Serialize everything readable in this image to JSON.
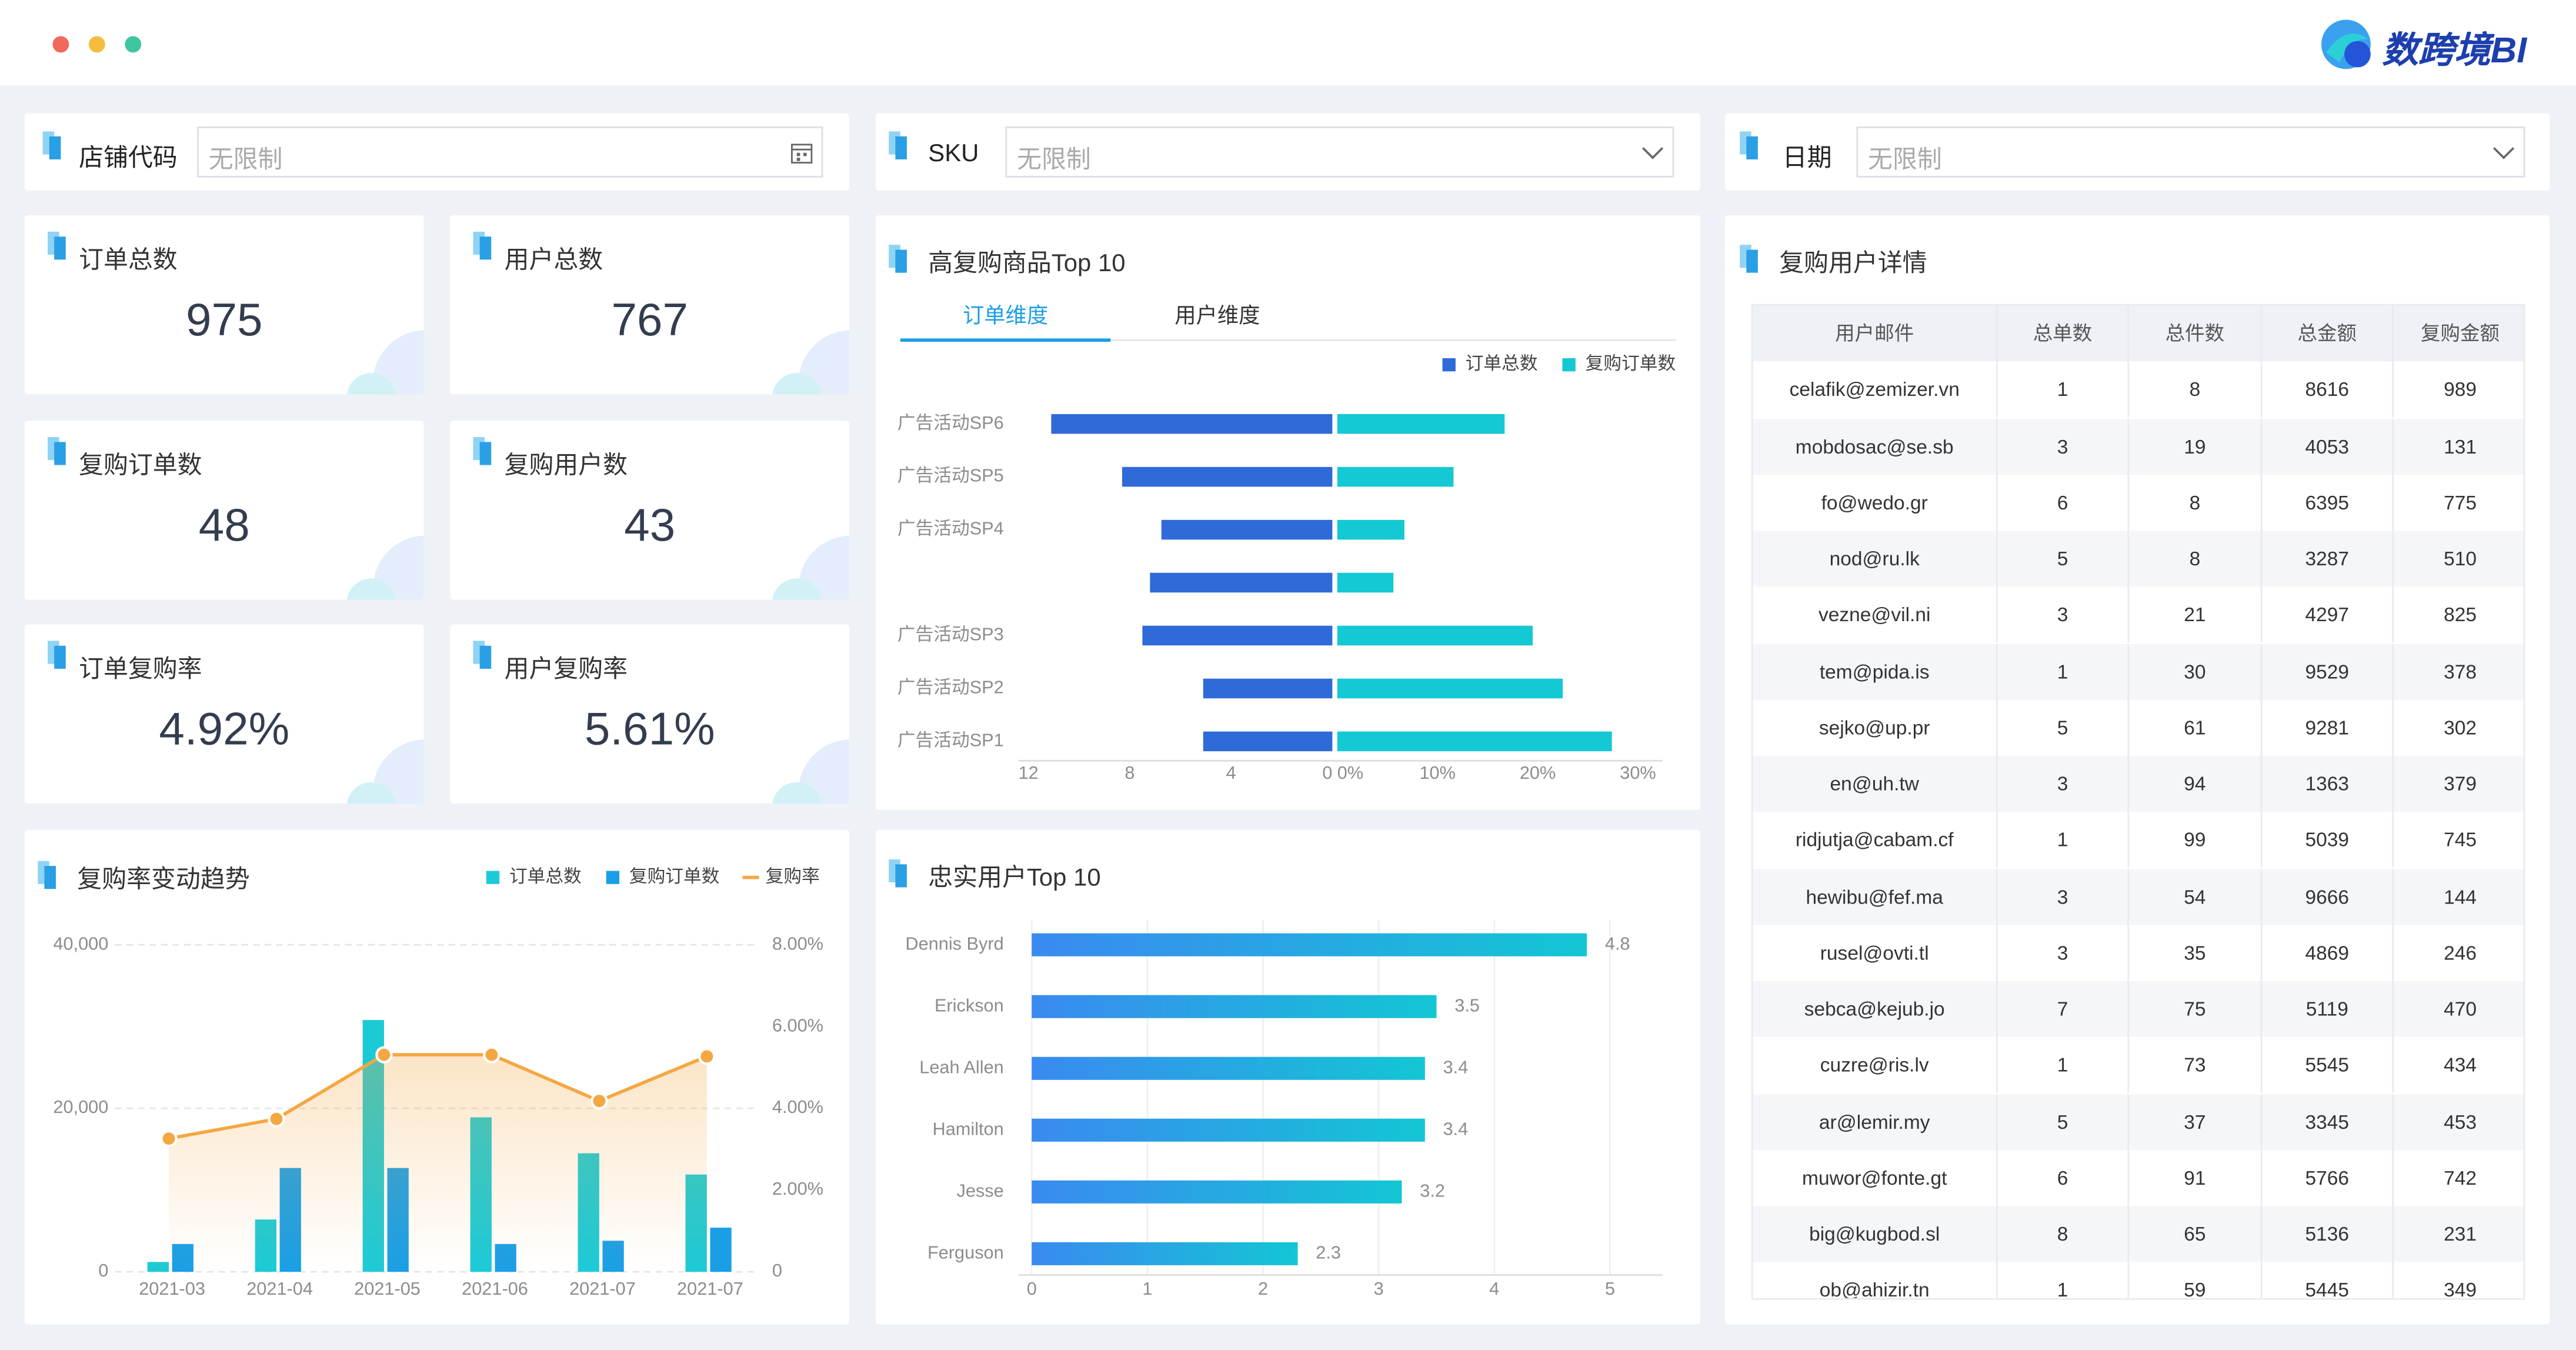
{
  "brand": "数跨境BI",
  "filters": [
    {
      "label": "店铺代码",
      "placeholder": "无限制"
    },
    {
      "label": "SKU",
      "placeholder": "无限制"
    },
    {
      "label": "日期",
      "placeholder": "无限制"
    }
  ],
  "kpis": [
    {
      "label": "订单总数",
      "value": 975
    },
    {
      "label": "用户总数",
      "value": 767
    },
    {
      "label": "复购订单数",
      "value": 48
    },
    {
      "label": "复购用户数",
      "value": 43
    },
    {
      "label": "订单复购率",
      "value": "4.92%"
    },
    {
      "label": "用户复购率",
      "value": "5.61%"
    }
  ],
  "chart_data": [
    {
      "type": "combo",
      "title": "复购率变动趋势",
      "categories": [
        "2021-03",
        "2021-04",
        "2021-05",
        "2021-06",
        "2021-07",
        "2021-07"
      ],
      "series": [
        {
          "name": "订单总数",
          "type": "bar",
          "color": "#1ccad6",
          "values": [
            1200,
            6400,
            30800,
            18900,
            14500,
            11900
          ]
        },
        {
          "name": "复购订单数",
          "type": "bar",
          "color": "#1a9fe6",
          "values": [
            3400,
            12700,
            12700,
            3400,
            3800,
            5400
          ]
        },
        {
          "name": "复购率",
          "type": "line",
          "color": "#f5a742",
          "axis": "y2",
          "values": [
            3.26,
            3.74,
            5.31,
            5.31,
            4.18,
            5.27
          ]
        }
      ],
      "ylim": [
        0,
        40000
      ],
      "yticks": [
        0,
        {
          "value": 20000,
          "label": "20,000"
        },
        {
          "value": 40000,
          "label": "40,000"
        }
      ],
      "y2lim": [
        0,
        8
      ],
      "y2ticks": [
        0,
        {
          "value": 2,
          "label": "2.00%"
        },
        {
          "value": 4,
          "label": "4.00%"
        },
        {
          "value": 6,
          "label": "6.00%"
        },
        {
          "value": 8,
          "label": "8.00%"
        }
      ],
      "grid": true,
      "legend": "top-right"
    },
    {
      "type": "diverging-bar",
      "title": "高复购商品Top 10",
      "tabs": [
        "订单维度",
        "用户维度"
      ],
      "categories": [
        "广告活动SP6",
        "广告活动SP5",
        "广告活动SP4",
        null,
        "广告活动SP3",
        "广告活动SP2",
        "广告活动SP1"
      ],
      "series": [
        {
          "name": "订单总数",
          "color": "#2f6ad9",
          "axis": "x",
          "values": [
            11.1,
            8.3,
            6.75,
            7.2,
            7.5,
            5.1,
            5.1
          ]
        },
        {
          "name": "复购订单数",
          "color": "#14c8d4",
          "axis": "x2",
          "values": [
            16.7,
            11.6,
            6.7,
            5.6,
            19.5,
            22.5,
            27.4
          ]
        }
      ],
      "xlim": [
        0,
        12
      ],
      "xticks": [
        12,
        8,
        4,
        0
      ],
      "x2lim": [
        0,
        30
      ],
      "x2ticks": [
        {
          "value": 0,
          "label": "0%"
        },
        {
          "value": 10,
          "label": "10%"
        },
        {
          "value": 20,
          "label": "20%"
        },
        {
          "value": 30,
          "label": "30%"
        }
      ],
      "legend": "top-right"
    },
    {
      "type": "hbar",
      "title": "忠实用户Top 10",
      "categories": [
        "Dennis Byrd",
        "Erickson",
        "Leah Allen",
        "Hamilton",
        "Jesse",
        "Ferguson"
      ],
      "values": [
        4.8,
        3.5,
        3.4,
        3.4,
        3.2,
        2.3
      ],
      "color": [
        "#3a8af0",
        "#13c6d4"
      ],
      "xlim": [
        0,
        5
      ],
      "xticks": [
        0,
        1,
        2,
        3,
        4,
        5
      ],
      "grid": true
    }
  ],
  "table": {
    "title": "复购用户详情",
    "columns": [
      "用户邮件",
      "总单数",
      "总件数",
      "总金额",
      "复购金额"
    ],
    "rows": [
      [
        "celafik@zemizer.vn",
        1,
        8,
        8616,
        989
      ],
      [
        "mobdosac@se.sb",
        3,
        19,
        4053,
        131
      ],
      [
        "fo@wedo.gr",
        6,
        8,
        6395,
        775
      ],
      [
        "nod@ru.lk",
        5,
        8,
        3287,
        510
      ],
      [
        "vezne@vil.ni",
        3,
        21,
        4297,
        825
      ],
      [
        "tem@pida.is",
        1,
        30,
        9529,
        378
      ],
      [
        "sejko@up.pr",
        5,
        61,
        9281,
        302
      ],
      [
        "en@uh.tw",
        3,
        94,
        1363,
        379
      ],
      [
        "ridjutja@cabam.cf",
        1,
        99,
        5039,
        745
      ],
      [
        "hewibu@fef.ma",
        3,
        54,
        9666,
        144
      ],
      [
        "rusel@ovti.tl",
        3,
        35,
        4869,
        246
      ],
      [
        "sebca@kejub.jo",
        7,
        75,
        5119,
        470
      ],
      [
        "cuzre@ris.lv",
        1,
        73,
        5545,
        434
      ],
      [
        "ar@lemir.my",
        5,
        37,
        3345,
        453
      ],
      [
        "muwor@fonte.gt",
        6,
        91,
        5766,
        742
      ],
      [
        "big@kugbod.sl",
        8,
        65,
        5136,
        231
      ],
      [
        "ob@ahizir.tn",
        1,
        59,
        5445,
        349
      ]
    ]
  }
}
